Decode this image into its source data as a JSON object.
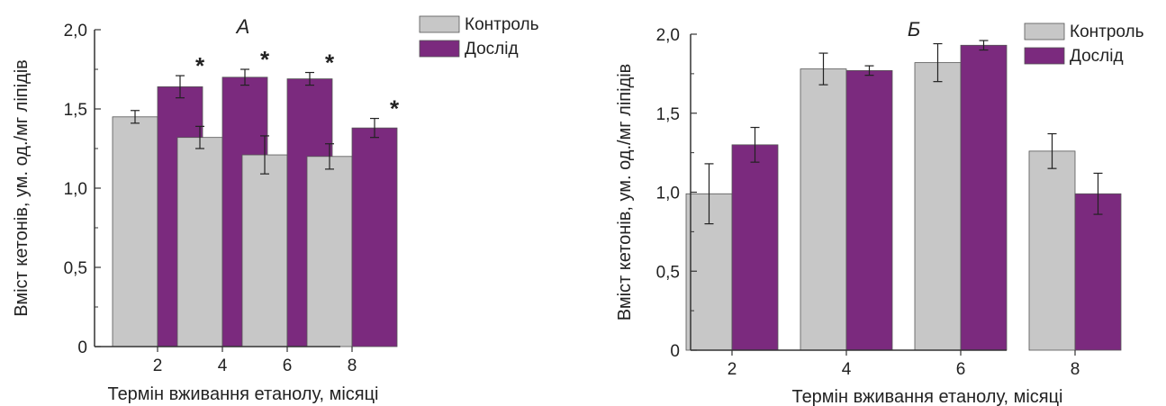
{
  "colors": {
    "control": "#c7c7c7",
    "experiment": "#7b2a7e",
    "axis": "#333333"
  },
  "chart_data": [
    {
      "type": "bar",
      "title": "А",
      "xlabel": "Термін вживання етанолу, місяці",
      "ylabel": "Вміст кетонів, ум. од./мг ліпідів",
      "categories": [
        "2",
        "4",
        "6",
        "8"
      ],
      "ylim": [
        0,
        2.0
      ],
      "yticks": [
        "0",
        "0,5",
        "1,0",
        "1,5",
        "2,0"
      ],
      "grid": false,
      "legend_position": "top-right",
      "series": [
        {
          "name": "Контроль",
          "values": [
            1.45,
            1.32,
            1.21,
            1.2
          ],
          "errors": [
            0.04,
            0.07,
            0.12,
            0.08
          ]
        },
        {
          "name": "Дослід",
          "values": [
            1.64,
            1.7,
            1.69,
            1.38
          ],
          "errors": [
            0.07,
            0.05,
            0.04,
            0.06
          ]
        }
      ],
      "significance_marker": "*",
      "significant": [
        false,
        true,
        false,
        true,
        false,
        true,
        false,
        true
      ]
    },
    {
      "type": "bar",
      "title": "Б",
      "xlabel": "Термін вживання етанолу, місяці",
      "ylabel": "Вміст кетонів, ум. од./мг ліпідів",
      "categories": [
        "2",
        "4",
        "6",
        "8"
      ],
      "ylim": [
        0,
        2.0
      ],
      "yticks": [
        "0",
        "0,5",
        "1,0",
        "1,5",
        "2,0"
      ],
      "grid": false,
      "legend_position": "top-right",
      "series": [
        {
          "name": "Контроль",
          "values": [
            0.99,
            1.78,
            1.82,
            1.26
          ],
          "errors": [
            0.19,
            0.1,
            0.12,
            0.11
          ]
        },
        {
          "name": "Дослід",
          "values": [
            1.3,
            1.77,
            1.93,
            0.99
          ],
          "errors": [
            0.11,
            0.03,
            0.03,
            0.13
          ]
        }
      ],
      "significance_marker": "*",
      "significant": [
        false,
        false,
        false,
        false,
        false,
        false,
        false,
        false
      ]
    }
  ]
}
